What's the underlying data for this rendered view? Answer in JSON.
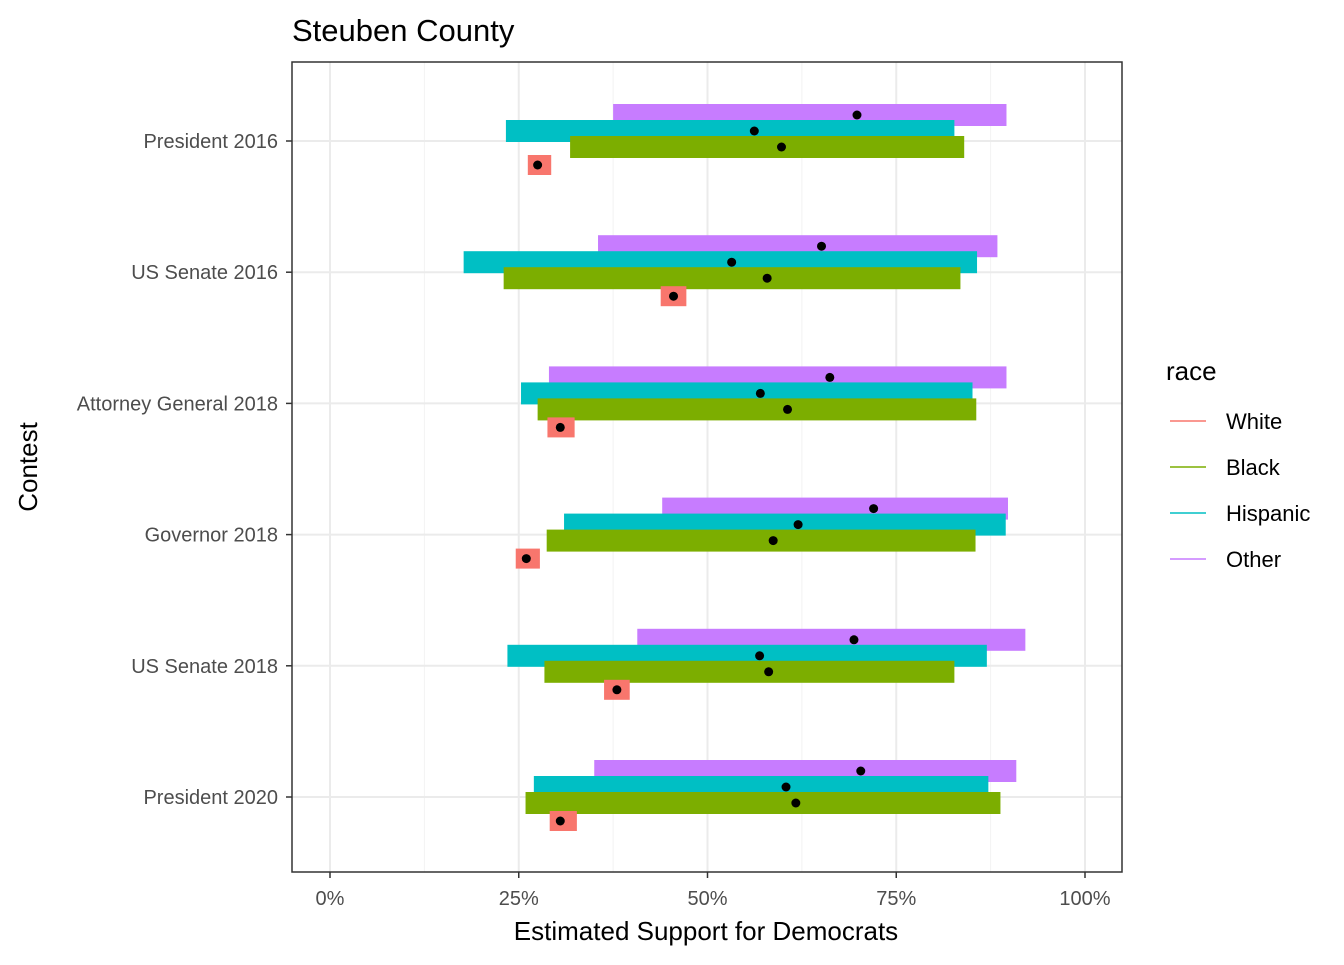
{
  "chart_data": {
    "type": "range_bar",
    "title": "Steuben County",
    "xlabel": "Estimated Support for Democrats",
    "ylabel": "Contest",
    "xlim": [
      -0.05,
      1.05
    ],
    "x_ticks": [
      0,
      0.25,
      0.5,
      0.75,
      1.0
    ],
    "x_tick_labels": [
      "0%",
      "25%",
      "50%",
      "75%",
      "100%"
    ],
    "categories": [
      "President 2016",
      "US Senate 2016",
      "Attorney General 2018",
      "Governor 2018",
      "US Senate 2018",
      "President 2020"
    ],
    "grid": true,
    "legend": {
      "title": "race",
      "position": "right",
      "entries": [
        {
          "name": "White",
          "color": "#F8766D"
        },
        {
          "name": "Black",
          "color": "#7CAE00"
        },
        {
          "name": "Hispanic",
          "color": "#00BFC4"
        },
        {
          "name": "Other",
          "color": "#C77CFF"
        }
      ]
    },
    "series": [
      {
        "name": "White",
        "color": "#F8766D",
        "estimates": [
          0.275,
          0.455,
          0.305,
          0.26,
          0.38,
          0.305
        ],
        "lower": [
          0.262,
          0.438,
          0.288,
          0.246,
          0.363,
          0.291
        ],
        "upper": [
          0.293,
          0.472,
          0.324,
          0.278,
          0.397,
          0.327
        ]
      },
      {
        "name": "Black",
        "color": "#7CAE00",
        "estimates": [
          0.598,
          0.579,
          0.606,
          0.587,
          0.581,
          0.617
        ],
        "lower": [
          0.318,
          0.23,
          0.275,
          0.287,
          0.284,
          0.259
        ],
        "upper": [
          0.84,
          0.835,
          0.856,
          0.855,
          0.827,
          0.888
        ]
      },
      {
        "name": "Hispanic",
        "color": "#00BFC4",
        "estimates": [
          0.562,
          0.532,
          0.57,
          0.62,
          0.569,
          0.604
        ],
        "lower": [
          0.233,
          0.177,
          0.253,
          0.31,
          0.235,
          0.27
        ],
        "upper": [
          0.827,
          0.857,
          0.851,
          0.895,
          0.87,
          0.872
        ]
      },
      {
        "name": "Other",
        "color": "#C77CFF",
        "estimates": [
          0.698,
          0.651,
          0.662,
          0.72,
          0.694,
          0.703
        ],
        "lower": [
          0.375,
          0.355,
          0.29,
          0.44,
          0.407,
          0.35
        ],
        "upper": [
          0.896,
          0.884,
          0.896,
          0.898,
          0.921,
          0.909
        ]
      }
    ]
  }
}
